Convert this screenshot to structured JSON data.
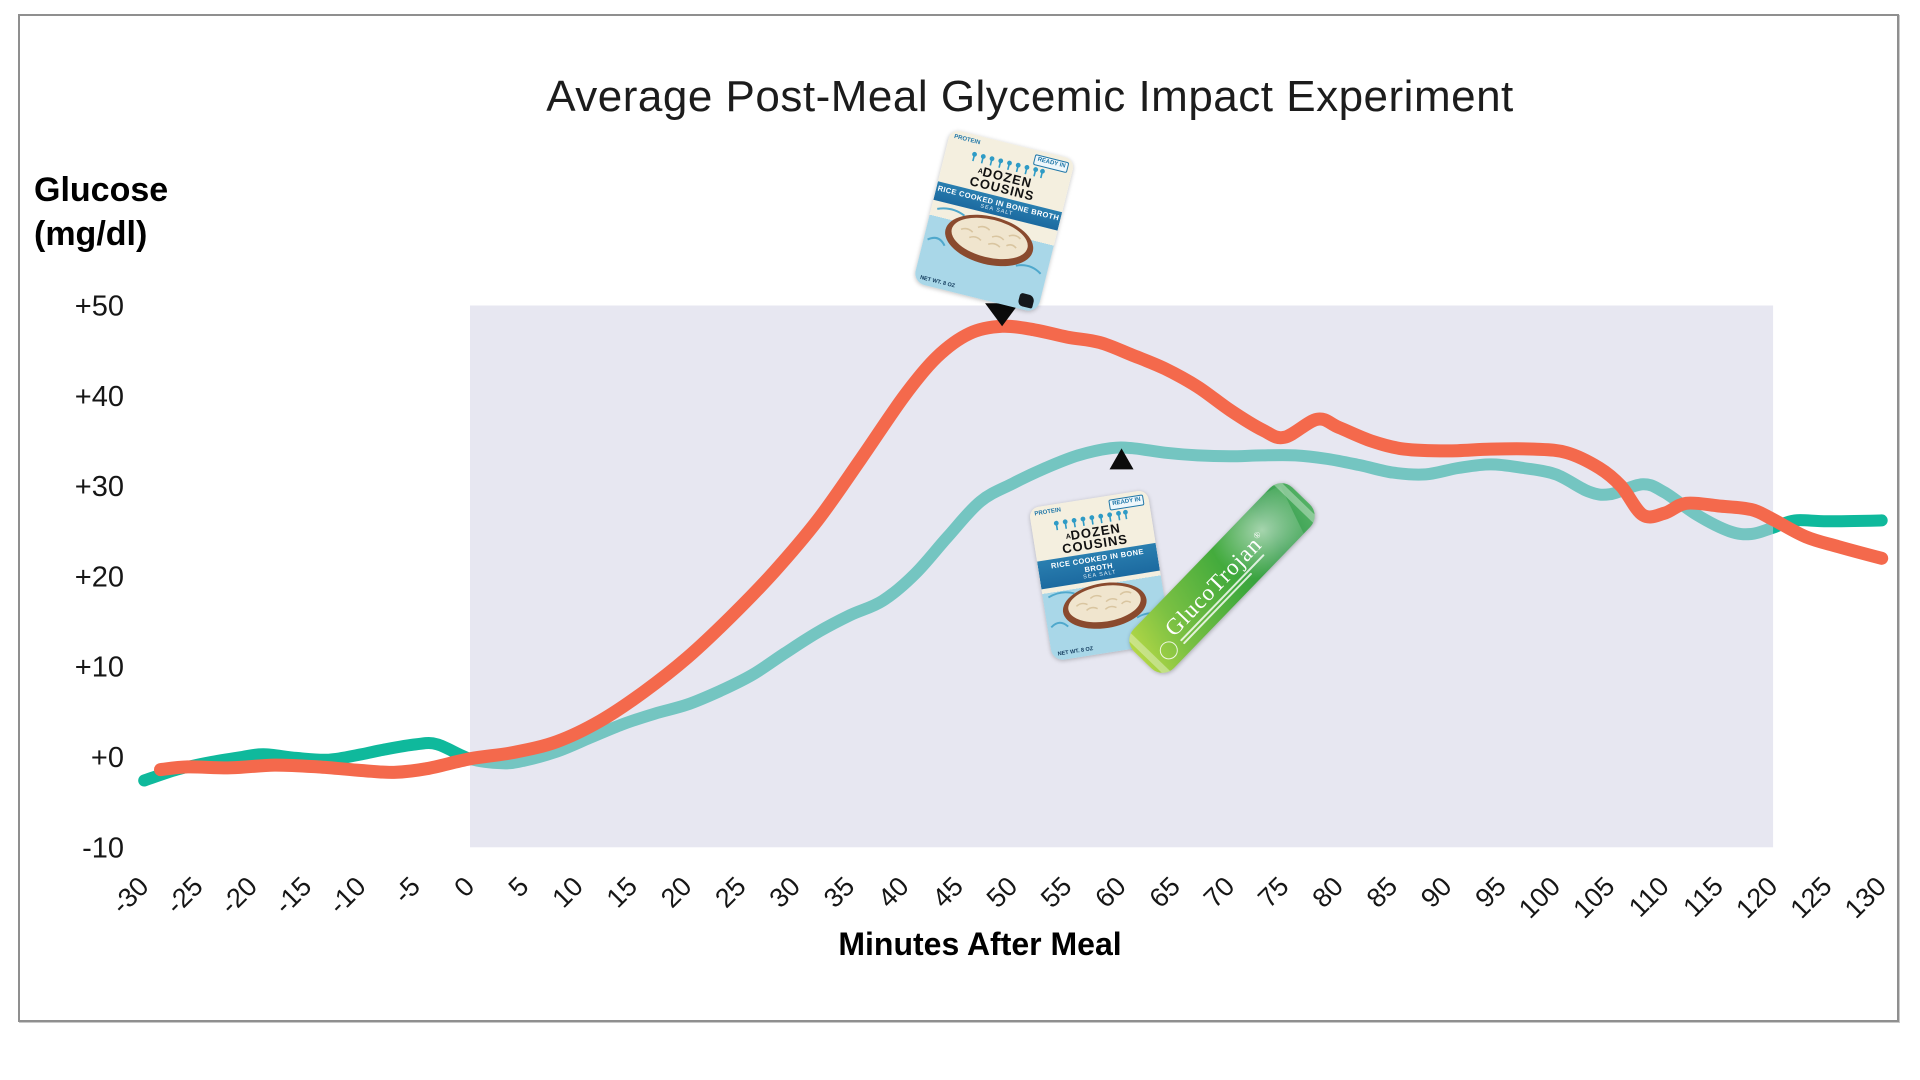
{
  "chart_data": {
    "type": "line",
    "title": "Average Post-Meal Glycemic Impact Experiment",
    "xlabel": "Minutes After Meal",
    "ylabel_line1": "Glucose",
    "ylabel_line2": "(mg/dl)",
    "xlim": [
      -30,
      130
    ],
    "ylim": [
      -10,
      50
    ],
    "grid": false,
    "legend": "none (series identified by product images)",
    "x_ticks": [
      -30,
      -25,
      -20,
      -15,
      -10,
      -5,
      0,
      5,
      10,
      15,
      20,
      25,
      30,
      35,
      40,
      45,
      50,
      55,
      60,
      65,
      70,
      75,
      80,
      85,
      90,
      95,
      100,
      105,
      110,
      115,
      120,
      125,
      130
    ],
    "y_ticks": [
      {
        "label": "+50",
        "value": 50
      },
      {
        "label": "+40",
        "value": 40
      },
      {
        "label": "+30",
        "value": 30
      },
      {
        "label": "+20",
        "value": 20
      },
      {
        "label": "+10",
        "value": 10
      },
      {
        "label": "+0",
        "value": 0
      },
      {
        "label": "-10",
        "value": -10
      }
    ],
    "highlight_region": {
      "x_start": 0,
      "x_end": 120,
      "color": "rgba(209,209,228,0.52)"
    },
    "series": [
      {
        "name": "rice_only",
        "label": "A Dozen Cousins rice (alone)",
        "color": "#F4694C",
        "stroke_width": 13,
        "points": [
          [
            -28.5,
            -1.4
          ],
          [
            -26,
            -1.1
          ],
          [
            -22,
            -1.2
          ],
          [
            -18,
            -0.9
          ],
          [
            -14,
            -1.1
          ],
          [
            -10,
            -1.5
          ],
          [
            -7,
            -1.7
          ],
          [
            -4,
            -1.3
          ],
          [
            0,
            -0.2
          ],
          [
            4,
            0.5
          ],
          [
            8,
            1.7
          ],
          [
            12,
            4
          ],
          [
            16,
            7.2
          ],
          [
            20,
            11
          ],
          [
            24,
            15.5
          ],
          [
            28,
            20.5
          ],
          [
            32,
            26.2
          ],
          [
            36,
            33
          ],
          [
            40,
            40
          ],
          [
            43,
            44.3
          ],
          [
            46,
            46.9
          ],
          [
            49,
            47.7
          ],
          [
            52,
            47.3
          ],
          [
            55,
            46.5
          ],
          [
            58,
            45.9
          ],
          [
            61,
            44.5
          ],
          [
            64,
            43
          ],
          [
            67,
            41
          ],
          [
            70,
            38.4
          ],
          [
            73,
            36.2
          ],
          [
            75,
            35.4
          ],
          [
            78,
            37.4
          ],
          [
            80,
            36.5
          ],
          [
            83,
            35
          ],
          [
            86,
            34.1
          ],
          [
            90,
            33.9
          ],
          [
            94,
            34.1
          ],
          [
            98,
            34.1
          ],
          [
            101,
            33.7
          ],
          [
            104,
            32
          ],
          [
            106,
            30
          ],
          [
            108,
            26.8
          ],
          [
            110,
            27
          ],
          [
            112,
            28.1
          ],
          [
            115,
            27.8
          ],
          [
            118,
            27.4
          ],
          [
            120,
            26.3
          ],
          [
            123,
            24.4
          ],
          [
            126,
            23.3
          ],
          [
            130,
            22
          ]
        ]
      },
      {
        "name": "rice_plus_glucotrojan",
        "label": "A Dozen Cousins rice + GlucoTrojan",
        "color": "#0FB99C",
        "stroke_width": 12,
        "points": [
          [
            -30,
            -2.6
          ],
          [
            -27,
            -1.4
          ],
          [
            -24,
            -0.6
          ],
          [
            -21,
            0
          ],
          [
            -19,
            0.3
          ],
          [
            -16,
            -0.1
          ],
          [
            -13,
            -0.3
          ],
          [
            -10,
            0.3
          ],
          [
            -8,
            0.8
          ],
          [
            -5,
            1.4
          ],
          [
            -3,
            1.4
          ],
          [
            0,
            -0.2
          ],
          [
            3,
            -0.7
          ],
          [
            5,
            -0.4
          ],
          [
            8,
            0.6
          ],
          [
            11,
            2.1
          ],
          [
            14,
            3.6
          ],
          [
            17,
            4.8
          ],
          [
            20,
            5.8
          ],
          [
            23,
            7.3
          ],
          [
            26,
            9.1
          ],
          [
            29,
            11.5
          ],
          [
            32,
            13.8
          ],
          [
            35,
            15.7
          ],
          [
            38,
            17.3
          ],
          [
            41,
            20.3
          ],
          [
            44,
            24.4
          ],
          [
            47,
            28.3
          ],
          [
            50,
            30.3
          ],
          [
            53,
            32
          ],
          [
            56,
            33.4
          ],
          [
            59,
            34.2
          ],
          [
            61,
            34.2
          ],
          [
            64,
            33.7
          ],
          [
            67,
            33.4
          ],
          [
            70,
            33.3
          ],
          [
            73,
            33.4
          ],
          [
            76,
            33.4
          ],
          [
            79,
            33
          ],
          [
            82,
            32.3
          ],
          [
            85,
            31.5
          ],
          [
            88,
            31.3
          ],
          [
            91,
            32
          ],
          [
            94,
            32.4
          ],
          [
            97,
            32
          ],
          [
            100,
            31.3
          ],
          [
            103,
            29.4
          ],
          [
            105,
            29.1
          ],
          [
            108,
            30.2
          ],
          [
            110,
            29.3
          ],
          [
            113,
            26.8
          ],
          [
            116,
            25
          ],
          [
            118,
            24.7
          ],
          [
            120,
            25.4
          ],
          [
            122,
            26.2
          ],
          [
            125,
            26.1
          ],
          [
            130,
            26.2
          ]
        ]
      }
    ],
    "annotations": [
      {
        "type": "triangle-down",
        "series": "rice_only",
        "minute": 49,
        "value": 47.7
      },
      {
        "type": "triangle-up",
        "series": "rice_plus_glucotrojan",
        "minute": 60,
        "value": 34.4
      }
    ]
  },
  "products": {
    "rice_packet": {
      "corner_left": "PROTEIN",
      "corner_right": "READY IN",
      "brand_a": "A",
      "brand_line1": "DOZEN",
      "brand_line2": "COUSINS",
      "banner": "RICE COOKED IN BONE BROTH",
      "flavor": "SEA SALT",
      "net_wt": "NET WT. 8 OZ"
    },
    "glucotrojan": {
      "name": "GlucoTrojan",
      "reg_mark": "®"
    }
  }
}
